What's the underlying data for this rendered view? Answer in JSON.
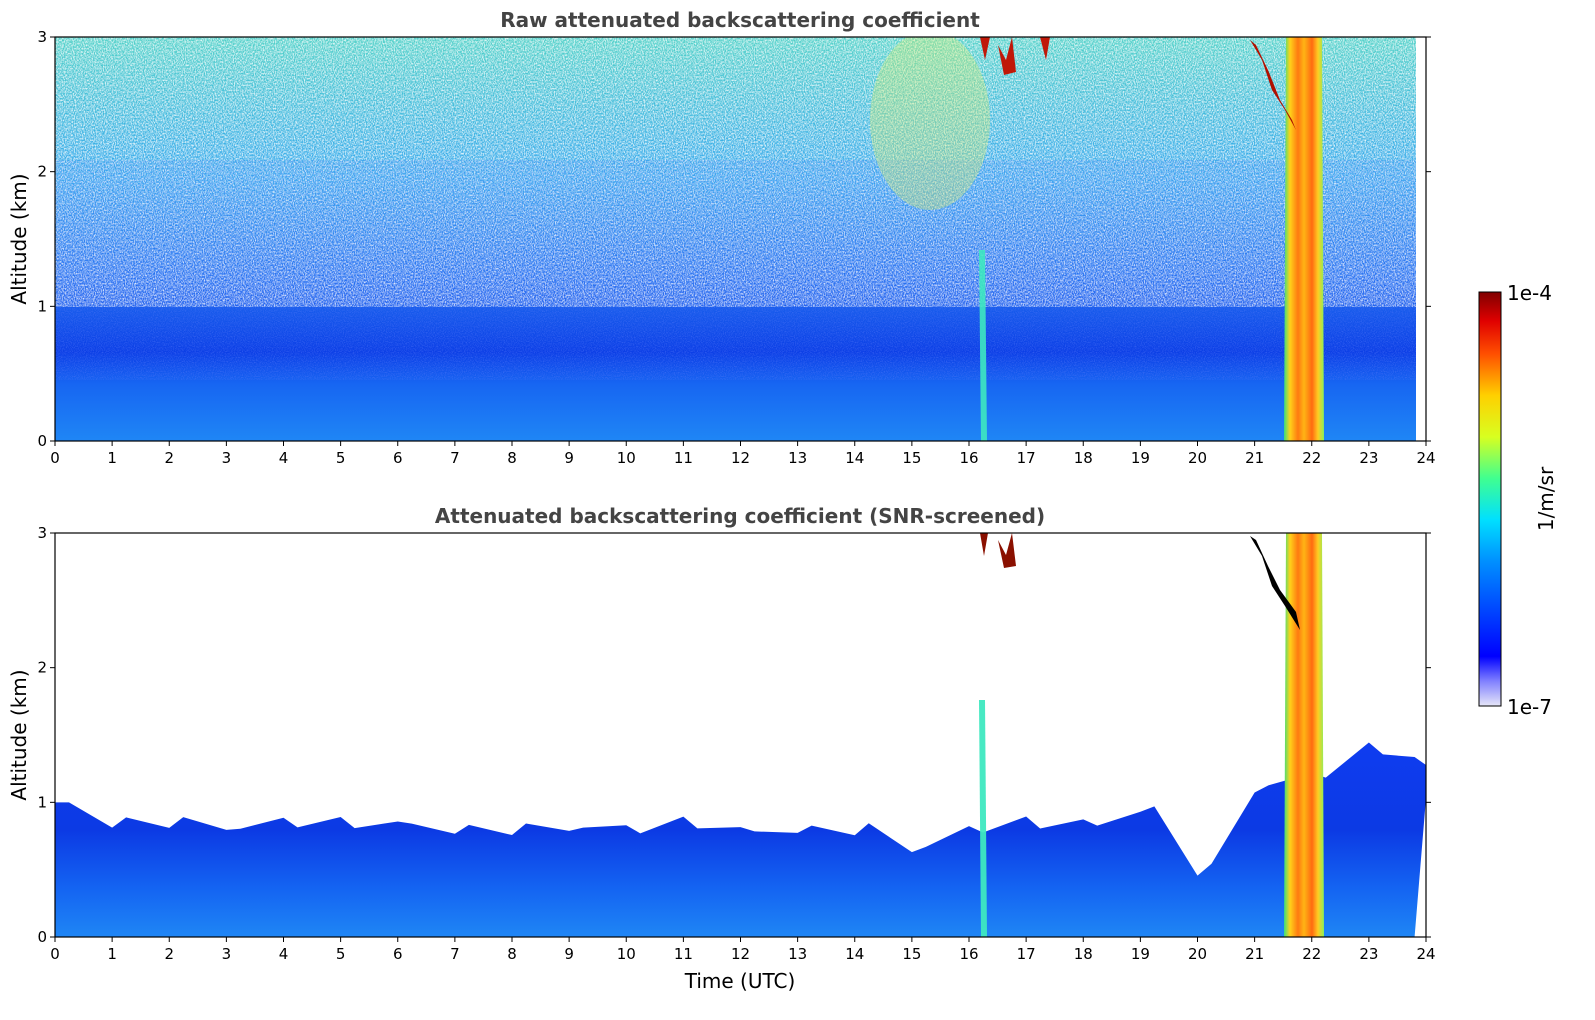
{
  "chart_data": [
    {
      "type": "heatmap",
      "title": "Raw attenuated backscattering coefficient",
      "ylabel": "Altitude (km)",
      "xlabel": "",
      "xlim": [
        0,
        24
      ],
      "ylim": [
        0,
        3
      ],
      "x_ticks": [
        0,
        1,
        2,
        3,
        4,
        5,
        6,
        7,
        8,
        9,
        10,
        11,
        12,
        13,
        14,
        15,
        16,
        17,
        18,
        19,
        20,
        21,
        22,
        23,
        24
      ],
      "y_ticks": [
        0,
        1,
        2,
        3
      ],
      "features": [
        {
          "label": "",
          "time_start": 16.2,
          "time_end": 16.4,
          "altitude_top": 1.5
        },
        {
          "label": "",
          "time_start": 21.6,
          "time_end": 22.3,
          "altitude_top": 3.0
        },
        {
          "label": "",
          "time_start": 16.6,
          "time_end": 17.3,
          "altitude_bottom": 2.7,
          "altitude_top": 3.0
        }
      ]
    },
    {
      "type": "heatmap",
      "title": "Attenuated backscattering coefficient (SNR-screened)",
      "ylabel": "Altitude (km)",
      "xlabel": "Time (UTC)",
      "xlim": [
        0,
        24
      ],
      "ylim": [
        0,
        3
      ],
      "x_ticks": [
        0,
        1,
        2,
        3,
        4,
        5,
        6,
        7,
        8,
        9,
        10,
        11,
        12,
        13,
        14,
        15,
        16,
        17,
        18,
        19,
        20,
        21,
        22,
        23,
        24
      ],
      "y_ticks": [
        0,
        1,
        2,
        3
      ],
      "boundary_layer_top_km": [
        [
          0,
          1.0
        ],
        [
          1,
          0.85
        ],
        [
          2,
          0.85
        ],
        [
          3,
          0.8
        ],
        [
          4,
          0.85
        ],
        [
          5,
          0.85
        ],
        [
          6,
          0.85
        ],
        [
          7,
          0.8
        ],
        [
          8,
          0.8
        ],
        [
          9,
          0.8
        ],
        [
          10,
          0.8
        ],
        [
          11,
          0.85
        ],
        [
          12,
          0.8
        ],
        [
          13,
          0.8
        ],
        [
          14,
          0.8
        ],
        [
          15,
          0.65
        ],
        [
          16,
          0.8
        ],
        [
          17,
          0.85
        ],
        [
          18,
          0.85
        ],
        [
          19,
          0.95
        ],
        [
          20,
          0.5
        ],
        [
          21,
          1.1
        ],
        [
          22,
          1.2
        ],
        [
          23,
          1.4
        ],
        [
          23.8,
          1.3
        ]
      ]
    }
  ],
  "colorbar": {
    "label": "1/m/sr",
    "max_label": "1e-4",
    "min_label": "1e-7",
    "scale": "log",
    "colormap": "jet"
  }
}
